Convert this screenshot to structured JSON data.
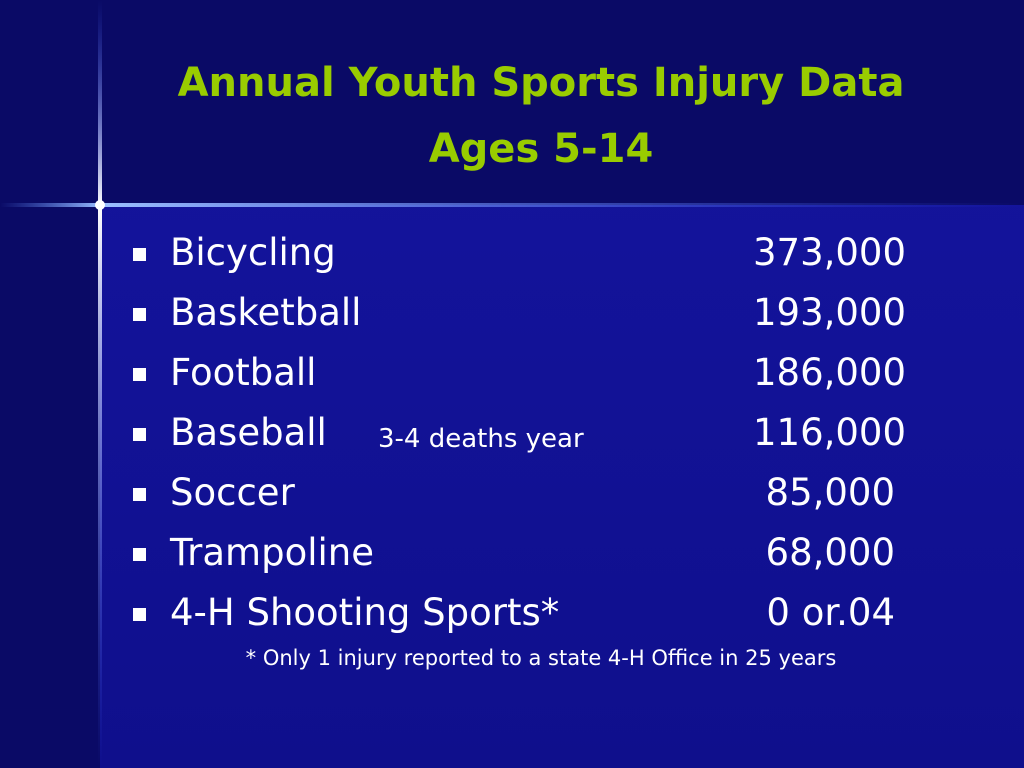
{
  "header": {
    "title": "Annual Youth Sports Injury Data",
    "subtitle": "Ages 5-14"
  },
  "list": {
    "items": [
      {
        "label": "Bicycling",
        "value": "373,000"
      },
      {
        "label": "Basketball",
        "value": "193,000"
      },
      {
        "label": "Football",
        "value": "186,000"
      },
      {
        "label": "Baseball",
        "note": "3-4 deaths year",
        "value": "116,000"
      },
      {
        "label": "Soccer",
        "value": "85,000"
      },
      {
        "label": "Trampoline",
        "value": "68,000"
      },
      {
        "label": "4-H Shooting Sports*",
        "value": "0 or.04"
      }
    ]
  },
  "footnote": "* Only 1 injury reported to a state 4-H Office in 25 years"
}
